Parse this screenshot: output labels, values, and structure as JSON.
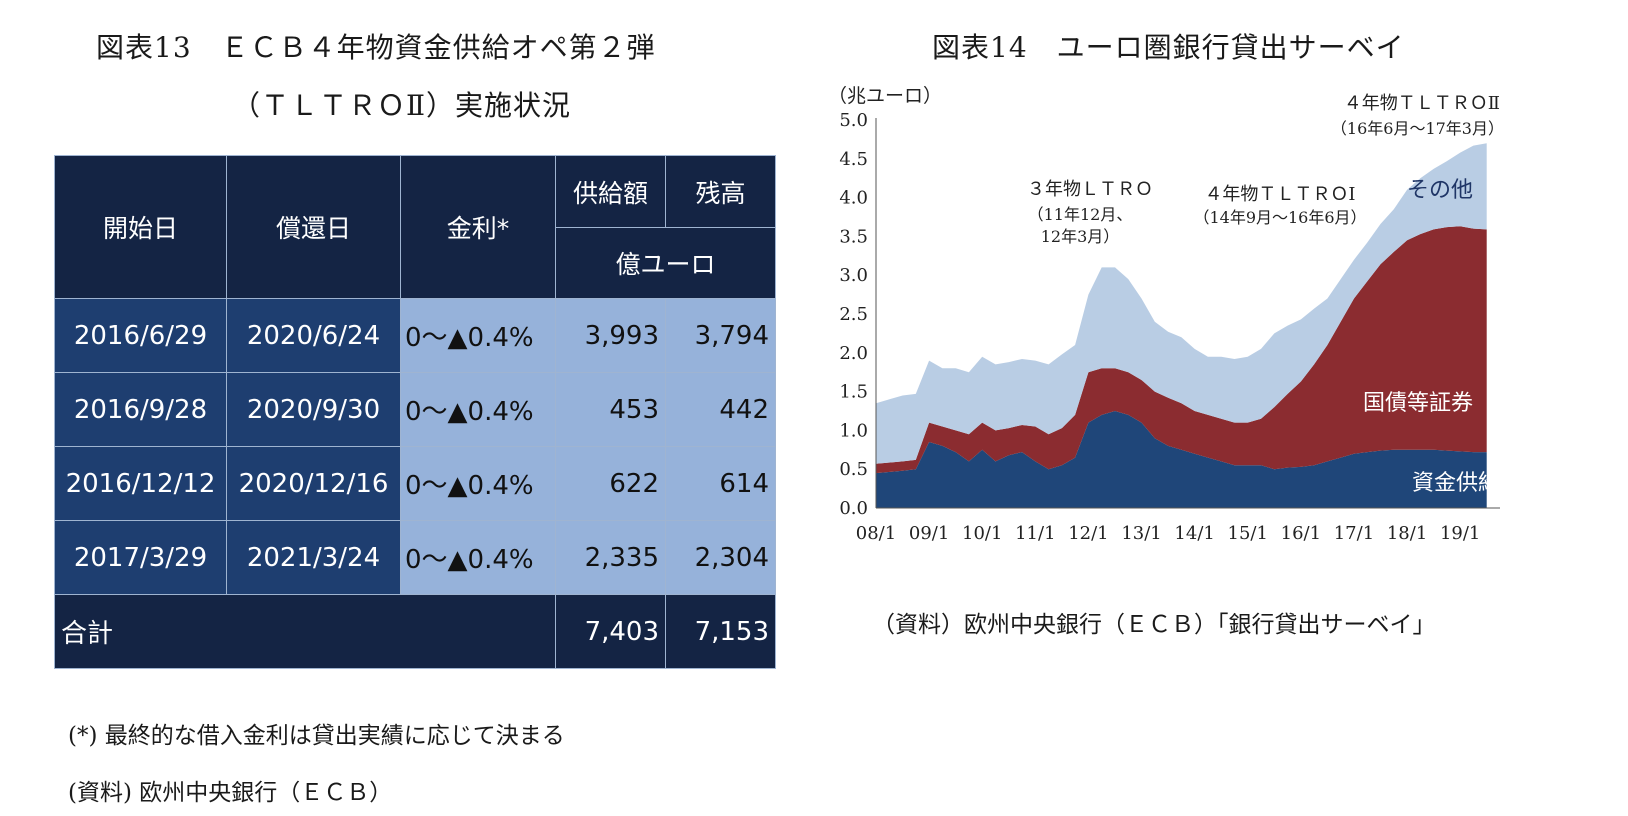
{
  "table_figure": {
    "title_line1": "図表13　ＥＣＢ４年物資金供給オペ第２弾",
    "title_line2": "（ＴＬＴＲＯⅡ）実施状況",
    "headers": {
      "start": "開始日",
      "redemption": "償還日",
      "rate": "金利*",
      "supply": "供給額",
      "balance": "残高",
      "unit": "億ユーロ"
    },
    "rows": [
      {
        "start": "2016/6/29",
        "redemption": "2020/6/24",
        "rate": "0～▲0.4%",
        "supply": "3,993",
        "balance": "3,794"
      },
      {
        "start": "2016/9/28",
        "redemption": "2020/9/30",
        "rate": "0～▲0.4%",
        "supply": "453",
        "balance": "442"
      },
      {
        "start": "2016/12/12",
        "redemption": "2020/12/16",
        "rate": "0～▲0.4%",
        "supply": "622",
        "balance": "614"
      },
      {
        "start": "2017/3/29",
        "redemption": "2021/3/24",
        "rate": "0～▲0.4%",
        "supply": "2,335",
        "balance": "2,304"
      }
    ],
    "total": {
      "label": "合計",
      "supply": "7,403",
      "balance": "7,153"
    },
    "note": "(*) 最終的な借入金利は貸出実績に応じて決まる",
    "source": "(資料) 欧州中央銀行（ＥＣＢ）"
  },
  "chart_figure": {
    "title": "図表14　ユーロ圏銀行貸出サーベイ",
    "source": "（資料）欧州中央銀行（ＥＣＢ）「銀行貸出サーベイ」"
  },
  "chart_data": {
    "type": "area",
    "stacked": true,
    "ylabel": "（兆ユーロ）",
    "ylim": [
      0,
      5
    ],
    "yticks": [
      "0.0",
      "0.5",
      "1.0",
      "1.5",
      "2.0",
      "2.5",
      "3.0",
      "3.5",
      "4.0",
      "4.5",
      "5.0"
    ],
    "xticks": [
      "08/1",
      "09/1",
      "10/1",
      "11/1",
      "12/1",
      "13/1",
      "14/1",
      "15/1",
      "16/1",
      "17/1",
      "18/1",
      "19/1"
    ],
    "x": [
      2008.0,
      2008.5,
      2008.75,
      2009.0,
      2009.25,
      2009.5,
      2009.75,
      2010.0,
      2010.25,
      2010.5,
      2010.75,
      2011.0,
      2011.25,
      2011.5,
      2011.75,
      2012.0,
      2012.25,
      2012.5,
      2012.75,
      2013.0,
      2013.25,
      2013.5,
      2013.75,
      2014.0,
      2014.25,
      2014.5,
      2014.75,
      2015.0,
      2015.25,
      2015.5,
      2015.75,
      2016.0,
      2016.25,
      2016.5,
      2016.75,
      2017.0,
      2017.25,
      2017.5,
      2017.75,
      2018.0,
      2018.25,
      2018.5,
      2018.75,
      2019.0,
      2019.25,
      2019.5
    ],
    "series": [
      {
        "name": "資金供給",
        "color": "#1f4679",
        "values": [
          0.45,
          0.48,
          0.5,
          0.85,
          0.8,
          0.72,
          0.6,
          0.75,
          0.6,
          0.68,
          0.72,
          0.6,
          0.5,
          0.55,
          0.65,
          1.1,
          1.2,
          1.25,
          1.2,
          1.1,
          0.9,
          0.8,
          0.75,
          0.7,
          0.65,
          0.6,
          0.55,
          0.55,
          0.55,
          0.5,
          0.52,
          0.53,
          0.55,
          0.6,
          0.65,
          0.7,
          0.72,
          0.74,
          0.75,
          0.75,
          0.75,
          0.75,
          0.74,
          0.73,
          0.72,
          0.72
        ]
      },
      {
        "name": "国債等証券",
        "color": "#8b2c30",
        "values": [
          0.12,
          0.12,
          0.12,
          0.25,
          0.25,
          0.28,
          0.35,
          0.35,
          0.4,
          0.35,
          0.35,
          0.45,
          0.45,
          0.48,
          0.55,
          0.65,
          0.6,
          0.55,
          0.55,
          0.55,
          0.6,
          0.62,
          0.6,
          0.55,
          0.55,
          0.55,
          0.55,
          0.55,
          0.6,
          0.8,
          0.95,
          1.1,
          1.3,
          1.5,
          1.75,
          2.0,
          2.2,
          2.4,
          2.55,
          2.7,
          2.78,
          2.84,
          2.88,
          2.9,
          2.88,
          2.87
        ]
      },
      {
        "name": "その他",
        "color": "#b9cde4",
        "values": [
          0.78,
          0.85,
          0.85,
          0.8,
          0.75,
          0.8,
          0.8,
          0.85,
          0.85,
          0.85,
          0.85,
          0.85,
          0.9,
          0.95,
          0.9,
          1.0,
          1.3,
          1.3,
          1.2,
          1.05,
          0.9,
          0.85,
          0.85,
          0.8,
          0.75,
          0.8,
          0.82,
          0.85,
          0.9,
          0.95,
          0.88,
          0.8,
          0.72,
          0.6,
          0.55,
          0.5,
          0.5,
          0.52,
          0.55,
          0.65,
          0.72,
          0.78,
          0.85,
          0.95,
          1.07,
          1.11
        ]
      }
    ],
    "annotations": [
      {
        "text": "３年物ＬＴＲＯ",
        "sub": [
          "（11年12月、",
          "12年3月）"
        ]
      },
      {
        "text": "４年物ＴＬＴＲＯⅠ",
        "sub": [
          "（14年9月～16年6月）"
        ]
      },
      {
        "text": "４年物ＴＬＴＲＯⅡ",
        "sub": [
          "（16年6月～17年3月）"
        ]
      }
    ],
    "grid": false
  }
}
